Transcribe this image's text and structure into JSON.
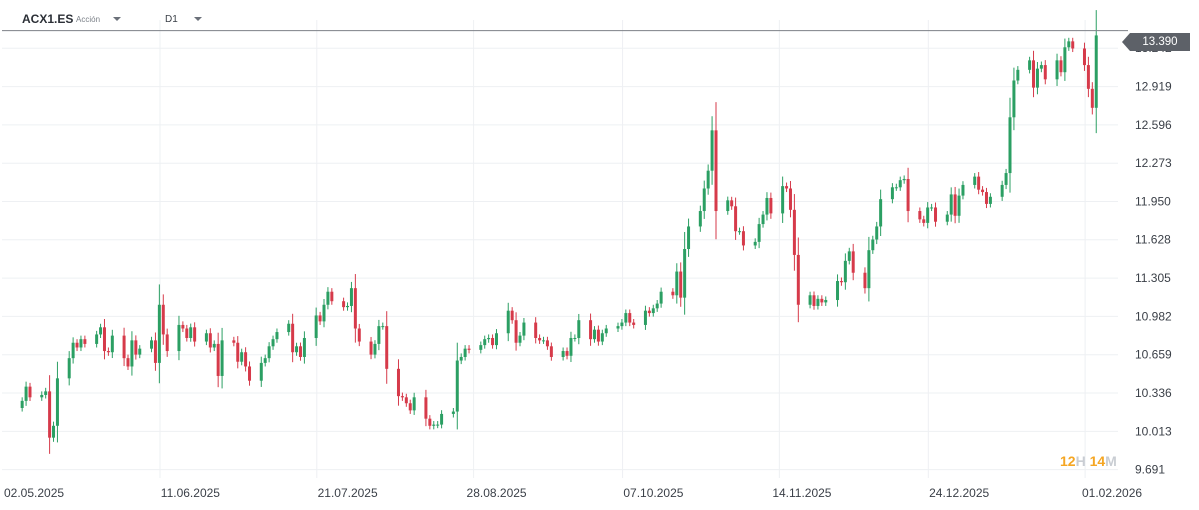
{
  "toolbar": {
    "symbol": "ACX1.ES",
    "asset_type": "Acción",
    "timeframe": "D1"
  },
  "last_price_label": "13.390",
  "period": {
    "hours": "12",
    "h_unit": "H",
    "minutes": "14",
    "m_unit": "M"
  },
  "colors": {
    "up": "#2b9f63",
    "down": "#d63a4a",
    "grid": "#eef0f3",
    "axis_text": "#3a3f47",
    "price_line": "#7d8187",
    "countdown": "#f5a623"
  },
  "chart_data": {
    "type": "candlestick",
    "title": "",
    "xlabel": "",
    "ylabel": "",
    "ylim": [
      9.62,
      13.48
    ],
    "y_ticks": [
      "13.242",
      "12.919",
      "12.596",
      "12.273",
      "11.950",
      "11.628",
      "11.305",
      "10.982",
      "10.659",
      "10.336",
      "10.013",
      "9.691"
    ],
    "x_ticks": [
      "02.05.2025",
      "11.06.2025",
      "21.07.2025",
      "28.08.2025",
      "07.10.2025",
      "14.11.2025",
      "24.12.2025",
      "01.02.2026"
    ],
    "x_tick_dates": [
      "2025-05-02",
      "2025-06-11",
      "2025-07-21",
      "2025-08-28",
      "2025-10-07",
      "2025-11-14",
      "2025-12-24",
      "2026-02-01"
    ],
    "last_price": 13.39,
    "grid": true,
    "closes": [
      10.27,
      10.39,
      10.3,
      10.32,
      10.35,
      9.96,
      10.06,
      10.46,
      10.63,
      10.76,
      10.72,
      10.79,
      10.75,
      10.83,
      10.89,
      10.69,
      10.68,
      10.82,
      10.63,
      10.56,
      10.78,
      10.66,
      10.71,
      10.78,
      10.59,
      11.08,
      10.83,
      10.69,
      10.91,
      10.88,
      10.8,
      10.89,
      10.77,
      10.84,
      10.72,
      10.75,
      10.48,
      10.78,
      10.76,
      10.6,
      10.68,
      10.56,
      10.44,
      10.59,
      10.63,
      10.73,
      10.79,
      10.85,
      10.92,
      10.68,
      10.73,
      10.64,
      10.8,
      10.99,
      10.94,
      11.08,
      11.19,
      11.11,
      11.06,
      11.07,
      11.22,
      10.88,
      10.77,
      10.66,
      10.75,
      10.9,
      10.9,
      10.54,
      10.31,
      10.3,
      10.25,
      10.19,
      10.3,
      10.12,
      10.06,
      10.07,
      10.07,
      10.16,
      10.18,
      10.61,
      10.64,
      10.71,
      10.7,
      10.74,
      10.79,
      10.8,
      10.74,
      10.84,
      11.03,
      10.95,
      10.76,
      10.82,
      10.93,
      10.8,
      10.78,
      10.78,
      10.73,
      10.64,
      10.69,
      10.65,
      10.8,
      10.8,
      10.95,
      10.79,
      10.87,
      10.77,
      10.84,
      10.88,
      10.9,
      10.93,
      11.01,
      10.93,
      10.91,
      11.03,
      11.01,
      11.05,
      11.09,
      11.19,
      11.16,
      11.36,
      11.14,
      11.55,
      11.74,
      11.87,
      12.06,
      12.21,
      12.55,
      11.87,
      11.96,
      11.91,
      11.7,
      11.7,
      11.58,
      11.61,
      11.76,
      11.84,
      11.98,
      11.85,
      12.08,
      12.06,
      11.88,
      11.5,
      11.08,
      11.16,
      11.07,
      11.13,
      11.1,
      11.12,
      11.28,
      11.27,
      11.45,
      11.53,
      11.35,
      11.22,
      11.54,
      11.63,
      11.74,
      11.97,
      12.07,
      12.07,
      12.13,
      12.14,
      11.87,
      11.8,
      11.77,
      11.9,
      11.9,
      11.78,
      11.84,
      12.01,
      11.83,
      12.0,
      12.09,
      12.16,
      12.05,
      12.03,
      11.93,
      11.99,
      12.09,
      12.19,
      12.66,
      12.97,
      13.06,
      13.14,
      12.91,
      13.07,
      13.1,
      12.98,
      13.14,
      13.04,
      13.25,
      13.3,
      13.24,
      13.1,
      12.9,
      12.74,
      13.35
    ]
  }
}
